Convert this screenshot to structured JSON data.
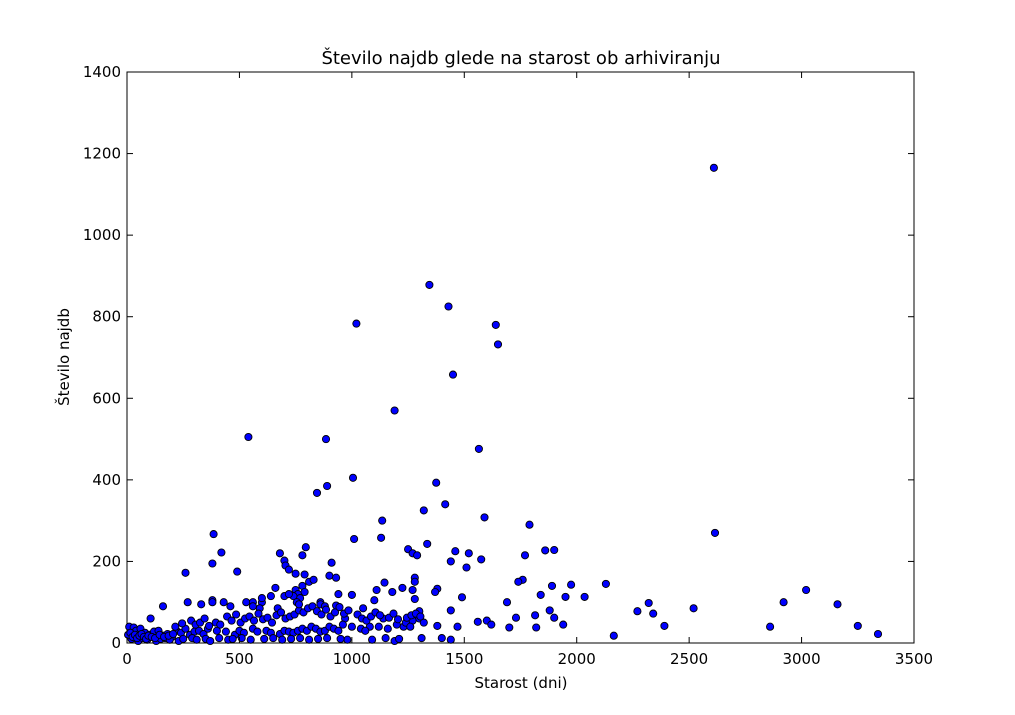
{
  "chart_data": {
    "type": "scatter",
    "title": "Število najdb glede na starost ob arhiviranju",
    "xlabel": "Starost (dni)",
    "ylabel": "Število najdb",
    "xlim": [
      0,
      3500
    ],
    "ylim": [
      0,
      1400
    ],
    "xticks": [
      0,
      500,
      1000,
      1500,
      2000,
      2500,
      3000,
      3500
    ],
    "yticks": [
      0,
      200,
      400,
      600,
      800,
      1000,
      1200,
      1400
    ],
    "grid": false,
    "marker_color": "#0000ff",
    "marker_edge_color": "#000000",
    "points": [
      [
        2610,
        1165
      ],
      [
        1345,
        878
      ],
      [
        1430,
        825
      ],
      [
        1020,
        783
      ],
      [
        1640,
        780
      ],
      [
        1650,
        732
      ],
      [
        1450,
        658
      ],
      [
        1190,
        570
      ],
      [
        540,
        505
      ],
      [
        885,
        500
      ],
      [
        1565,
        476
      ],
      [
        1005,
        405
      ],
      [
        1375,
        393
      ],
      [
        890,
        385
      ],
      [
        845,
        368
      ],
      [
        1415,
        340
      ],
      [
        1320,
        325
      ],
      [
        1590,
        308
      ],
      [
        1135,
        300
      ],
      [
        1790,
        290
      ],
      [
        2615,
        270
      ],
      [
        385,
        267
      ],
      [
        1130,
        258
      ],
      [
        1010,
        255
      ],
      [
        1335,
        243
      ],
      [
        795,
        235
      ],
      [
        1250,
        230
      ],
      [
        1460,
        225
      ],
      [
        1860,
        227
      ],
      [
        1900,
        228
      ],
      [
        420,
        222
      ],
      [
        680,
        220
      ],
      [
        1270,
        220
      ],
      [
        1520,
        220
      ],
      [
        1290,
        215
      ],
      [
        780,
        215
      ],
      [
        1770,
        215
      ],
      [
        1575,
        205
      ],
      [
        700,
        202
      ],
      [
        1440,
        200
      ],
      [
        910,
        197
      ],
      [
        380,
        195
      ],
      [
        705,
        190
      ],
      [
        1510,
        185
      ],
      [
        720,
        180
      ],
      [
        490,
        175
      ],
      [
        260,
        172
      ],
      [
        750,
        170
      ],
      [
        790,
        168
      ],
      [
        900,
        165
      ],
      [
        930,
        160
      ],
      [
        1280,
        160
      ],
      [
        1280,
        150
      ],
      [
        1760,
        155
      ],
      [
        1740,
        150
      ],
      [
        1975,
        143
      ],
      [
        2130,
        145
      ],
      [
        1890,
        140
      ],
      [
        1145,
        148
      ],
      [
        1225,
        135
      ],
      [
        1110,
        130
      ],
      [
        660,
        135
      ],
      [
        3020,
        130
      ],
      [
        1380,
        133
      ],
      [
        1270,
        130
      ],
      [
        1180,
        125
      ],
      [
        1370,
        125
      ],
      [
        940,
        120
      ],
      [
        1000,
        118
      ],
      [
        1840,
        118
      ],
      [
        2035,
        113
      ],
      [
        1950,
        113
      ],
      [
        1490,
        112
      ],
      [
        1100,
        105
      ],
      [
        1280,
        108
      ],
      [
        380,
        105
      ],
      [
        2920,
        100
      ],
      [
        1690,
        100
      ],
      [
        2320,
        98
      ],
      [
        860,
        100
      ],
      [
        330,
        95
      ],
      [
        380,
        100
      ],
      [
        530,
        100
      ],
      [
        270,
        100
      ],
      [
        430,
        100
      ],
      [
        560,
        100
      ],
      [
        600,
        100
      ],
      [
        3160,
        95
      ],
      [
        860,
        95
      ],
      [
        880,
        90
      ],
      [
        160,
        90
      ],
      [
        2520,
        85
      ],
      [
        930,
        92
      ],
      [
        460,
        90
      ],
      [
        590,
        85
      ],
      [
        670,
        85
      ],
      [
        1050,
        85
      ],
      [
        1880,
        80
      ],
      [
        2270,
        78
      ],
      [
        1440,
        80
      ],
      [
        1300,
        78
      ],
      [
        2340,
        72
      ],
      [
        1815,
        68
      ],
      [
        1900,
        62
      ],
      [
        1600,
        55
      ],
      [
        1730,
        62
      ],
      [
        1560,
        52
      ],
      [
        970,
        60
      ],
      [
        1140,
        60
      ],
      [
        1270,
        55
      ],
      [
        105,
        60
      ],
      [
        2860,
        40
      ],
      [
        3250,
        42
      ],
      [
        2390,
        42
      ],
      [
        1940,
        45
      ],
      [
        1820,
        38
      ],
      [
        1700,
        38
      ],
      [
        1620,
        45
      ],
      [
        1470,
        40
      ],
      [
        1380,
        42
      ],
      [
        1230,
        40
      ],
      [
        1080,
        40
      ],
      [
        3340,
        22
      ],
      [
        2165,
        18
      ],
      [
        1440,
        8
      ],
      [
        1400,
        12
      ],
      [
        1190,
        5
      ],
      [
        980,
        8
      ],
      [
        10,
        40
      ],
      [
        30,
        38
      ],
      [
        40,
        30
      ],
      [
        60,
        35
      ],
      [
        80,
        25
      ],
      [
        100,
        20
      ],
      [
        120,
        28
      ],
      [
        140,
        30
      ],
      [
        160,
        18
      ],
      [
        180,
        22
      ],
      [
        200,
        15
      ],
      [
        220,
        30
      ],
      [
        240,
        25
      ],
      [
        260,
        35
      ],
      [
        280,
        20
      ],
      [
        300,
        28
      ],
      [
        320,
        30
      ],
      [
        340,
        22
      ],
      [
        360,
        35
      ],
      [
        400,
        30
      ],
      [
        440,
        28
      ],
      [
        480,
        20
      ],
      [
        500,
        30
      ],
      [
        520,
        25
      ],
      [
        560,
        35
      ],
      [
        580,
        28
      ],
      [
        620,
        30
      ],
      [
        640,
        25
      ],
      [
        680,
        22
      ],
      [
        700,
        30
      ],
      [
        720,
        28
      ],
      [
        740,
        25
      ],
      [
        760,
        30
      ],
      [
        780,
        35
      ],
      [
        800,
        30
      ],
      [
        820,
        40
      ],
      [
        840,
        35
      ],
      [
        860,
        28
      ],
      [
        880,
        30
      ],
      [
        900,
        40
      ],
      [
        920,
        35
      ],
      [
        940,
        30
      ],
      [
        960,
        45
      ],
      [
        1000,
        40
      ],
      [
        1040,
        35
      ],
      [
        1060,
        30
      ],
      [
        1120,
        40
      ],
      [
        1160,
        35
      ],
      [
        1200,
        45
      ],
      [
        1240,
        50
      ],
      [
        1260,
        40
      ],
      [
        1300,
        60
      ],
      [
        1320,
        50
      ],
      [
        20,
        10
      ],
      [
        50,
        5
      ],
      [
        70,
        12
      ],
      [
        90,
        8
      ],
      [
        130,
        5
      ],
      [
        150,
        10
      ],
      [
        170,
        12
      ],
      [
        190,
        8
      ],
      [
        230,
        5
      ],
      [
        250,
        10
      ],
      [
        290,
        12
      ],
      [
        310,
        8
      ],
      [
        350,
        10
      ],
      [
        370,
        5
      ],
      [
        410,
        12
      ],
      [
        450,
        8
      ],
      [
        470,
        10
      ],
      [
        510,
        12
      ],
      [
        550,
        8
      ],
      [
        610,
        10
      ],
      [
        650,
        12
      ],
      [
        690,
        8
      ],
      [
        730,
        10
      ],
      [
        770,
        12
      ],
      [
        810,
        8
      ],
      [
        850,
        10
      ],
      [
        890,
        12
      ],
      [
        950,
        10
      ],
      [
        1090,
        8
      ],
      [
        1150,
        12
      ],
      [
        1210,
        10
      ],
      [
        1310,
        12
      ],
      [
        5,
        20
      ],
      [
        15,
        25
      ],
      [
        25,
        15
      ],
      [
        35,
        20
      ],
      [
        45,
        12
      ],
      [
        55,
        18
      ],
      [
        65,
        22
      ],
      [
        75,
        15
      ],
      [
        85,
        10
      ],
      [
        95,
        18
      ],
      [
        110,
        15
      ],
      [
        125,
        12
      ],
      [
        145,
        20
      ],
      [
        165,
        15
      ],
      [
        185,
        18
      ],
      [
        205,
        22
      ],
      [
        215,
        40
      ],
      [
        245,
        48
      ],
      [
        285,
        55
      ],
      [
        305,
        45
      ],
      [
        325,
        50
      ],
      [
        345,
        60
      ],
      [
        365,
        42
      ],
      [
        395,
        50
      ],
      [
        415,
        45
      ],
      [
        445,
        65
      ],
      [
        465,
        55
      ],
      [
        485,
        70
      ],
      [
        505,
        50
      ],
      [
        525,
        60
      ],
      [
        545,
        65
      ],
      [
        565,
        55
      ],
      [
        585,
        72
      ],
      [
        605,
        58
      ],
      [
        625,
        62
      ],
      [
        645,
        50
      ],
      [
        665,
        68
      ],
      [
        685,
        75
      ],
      [
        705,
        60
      ],
      [
        725,
        65
      ],
      [
        745,
        70
      ],
      [
        765,
        80
      ],
      [
        785,
        75
      ],
      [
        805,
        85
      ],
      [
        825,
        90
      ],
      [
        845,
        78
      ],
      [
        865,
        70
      ],
      [
        885,
        82
      ],
      [
        905,
        65
      ],
      [
        925,
        75
      ],
      [
        945,
        88
      ],
      [
        965,
        72
      ],
      [
        985,
        80
      ],
      [
        1025,
        70
      ],
      [
        1045,
        60
      ],
      [
        1065,
        55
      ],
      [
        1085,
        65
      ],
      [
        1105,
        75
      ],
      [
        1125,
        68
      ],
      [
        1165,
        62
      ],
      [
        1185,
        72
      ],
      [
        1205,
        58
      ],
      [
        1245,
        62
      ],
      [
        1265,
        68
      ],
      [
        1285,
        72
      ],
      [
        1305,
        65
      ],
      [
        750,
        130
      ],
      [
        760,
        120
      ],
      [
        770,
        110
      ],
      [
        780,
        140
      ],
      [
        790,
        125
      ],
      [
        740,
        115
      ],
      [
        755,
        100
      ],
      [
        765,
        95
      ],
      [
        810,
        150
      ],
      [
        830,
        155
      ],
      [
        560,
        90
      ],
      [
        600,
        110
      ],
      [
        640,
        115
      ],
      [
        700,
        115
      ],
      [
        720,
        120
      ]
    ]
  }
}
